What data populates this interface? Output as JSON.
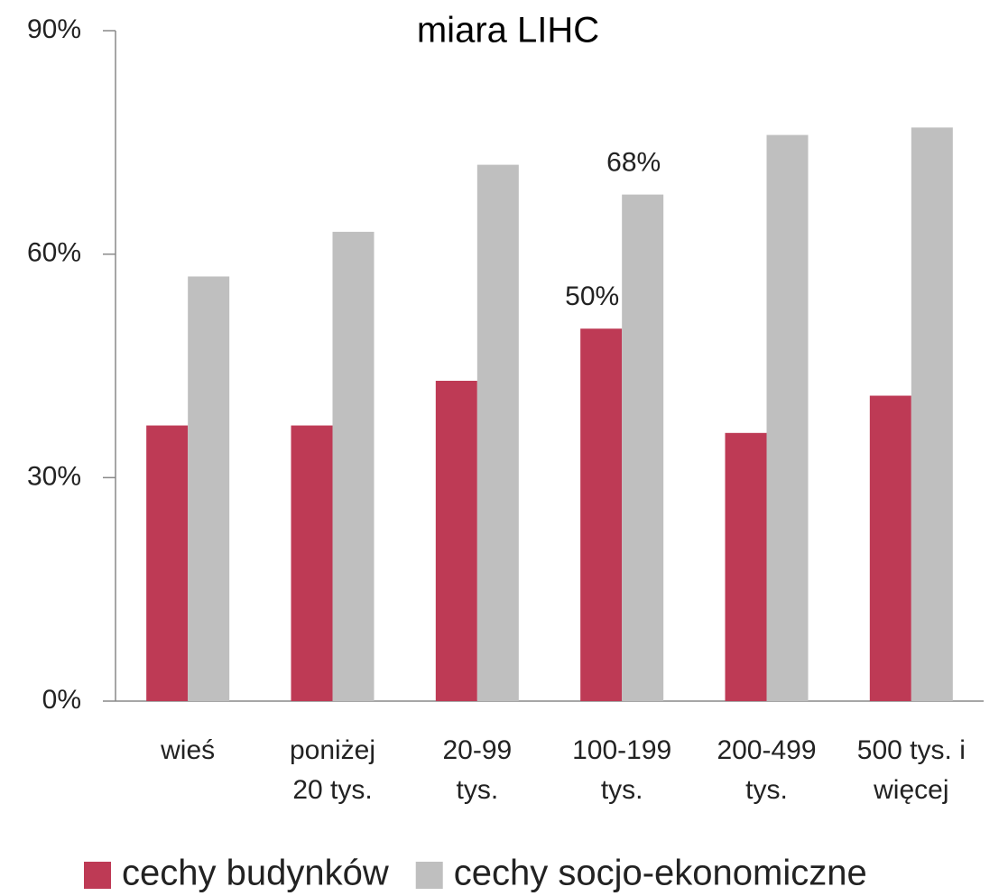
{
  "chart_data": {
    "type": "bar",
    "title": "miara LIHC",
    "categories": [
      "wieś",
      "poniżej\n20 tys.",
      "20-99\ntys.",
      "100-199\ntys.",
      "200-499\ntys.",
      "500 tys. i\nwięcej"
    ],
    "series": [
      {
        "name": "cechy budynków",
        "color": "#be3a55",
        "values": [
          37,
          37,
          43,
          50,
          36,
          41
        ],
        "value_labels": [
          null,
          null,
          null,
          "50%",
          null,
          null
        ]
      },
      {
        "name": "cechy socjo-ekonomiczne",
        "color": "#bfbfbf",
        "values": [
          57,
          63,
          72,
          68,
          76,
          77
        ],
        "value_labels": [
          null,
          null,
          null,
          "68%",
          null,
          null
        ]
      }
    ],
    "ylim": [
      0,
      90
    ],
    "yticks": [
      {
        "value": 0,
        "label": "0%"
      },
      {
        "value": 30,
        "label": "30%"
      },
      {
        "value": 60,
        "label": "60%"
      },
      {
        "value": 90,
        "label": "90%"
      }
    ],
    "grid": false,
    "legend": "bottom"
  }
}
